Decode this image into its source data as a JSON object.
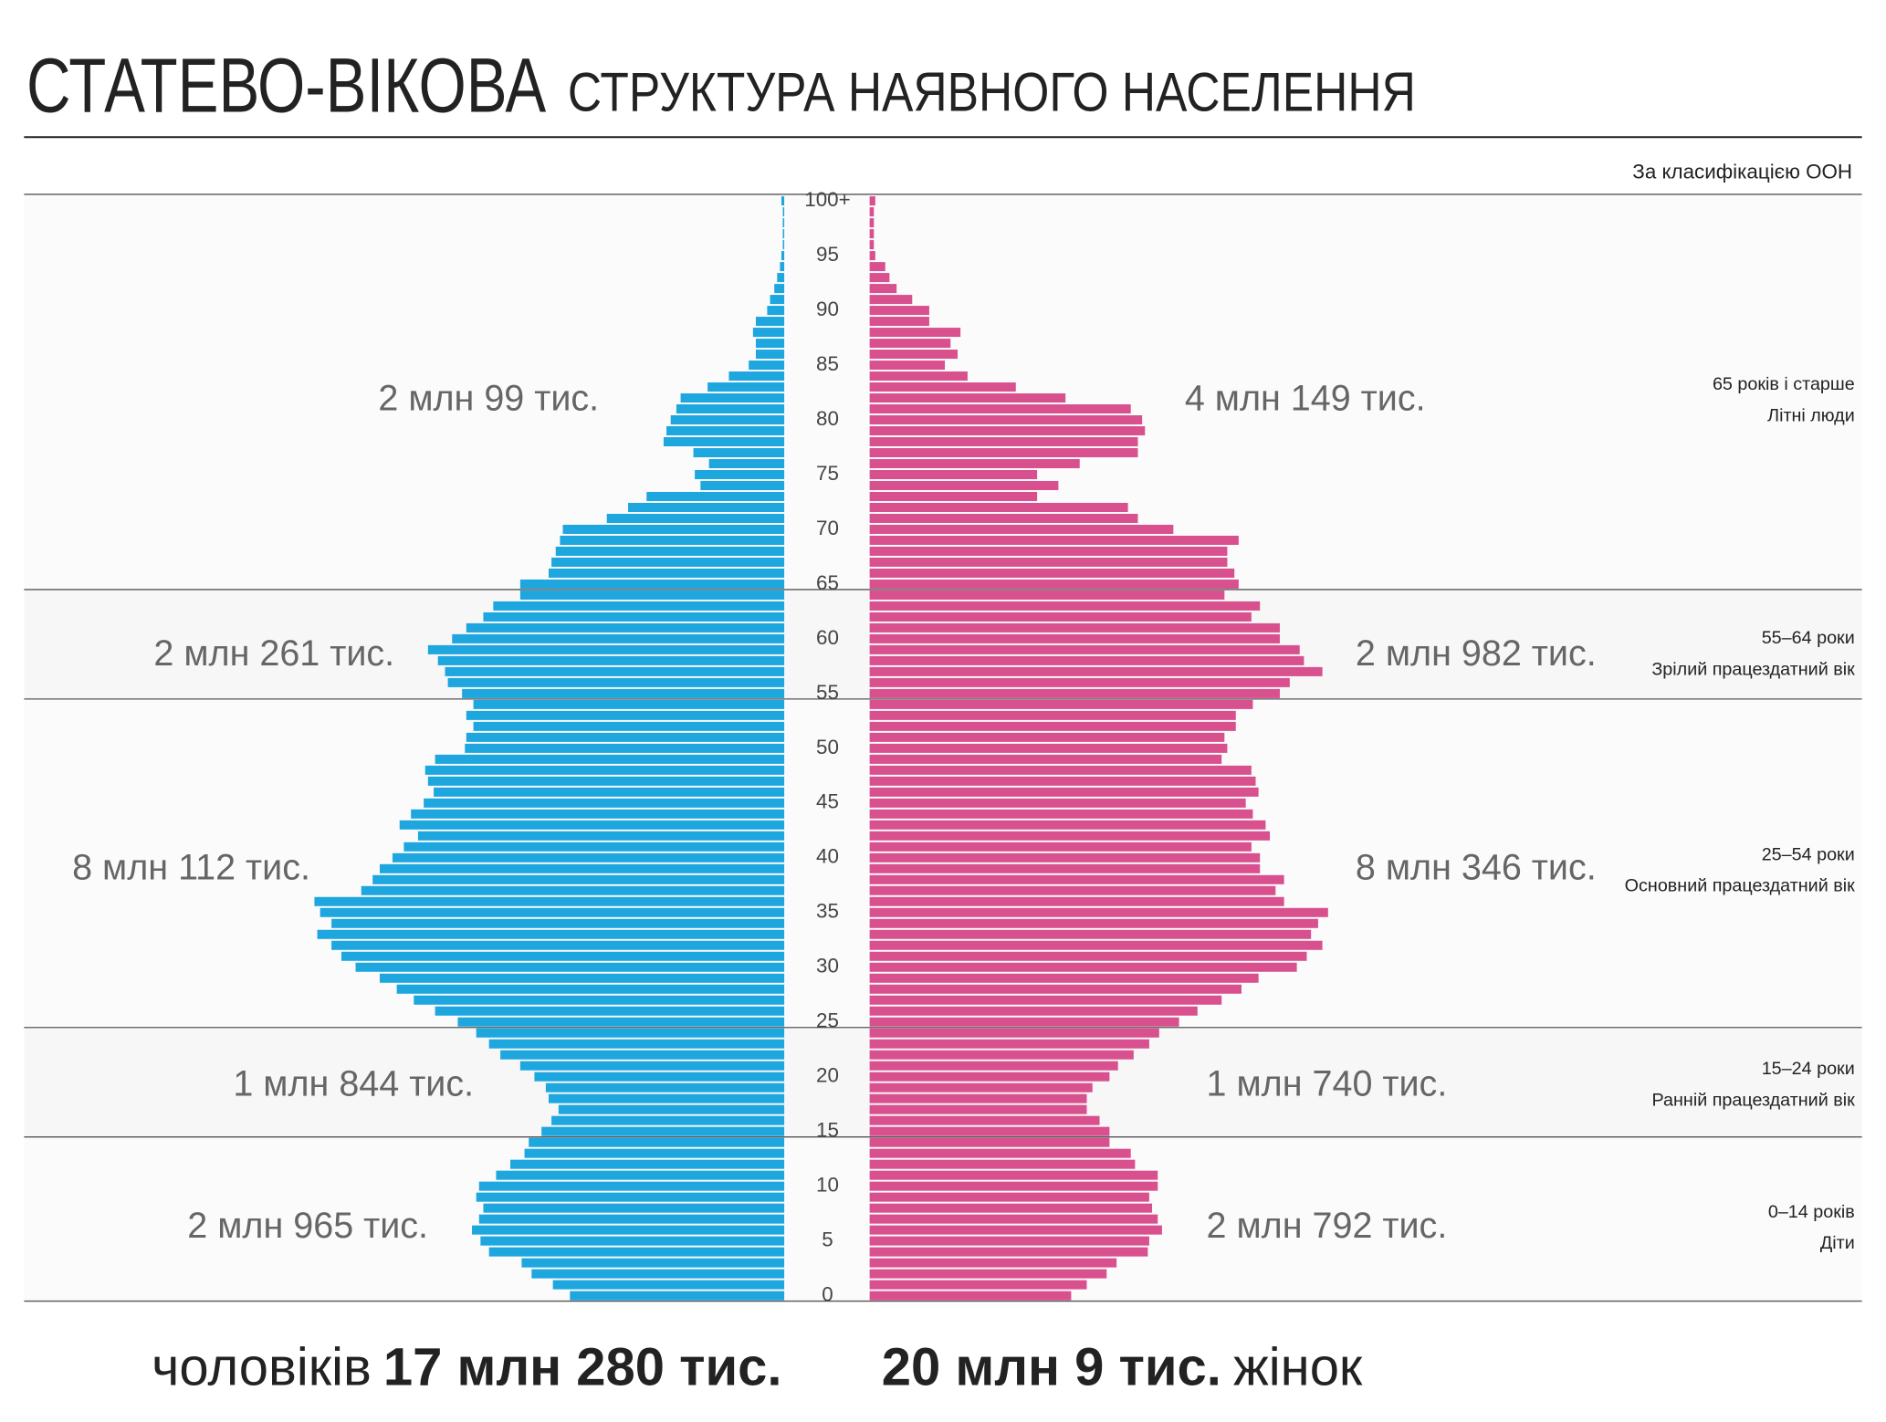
{
  "chart_data": {
    "type": "population_pyramid",
    "title": "СТАТЕВО-ВІКОВА",
    "subtitle": "СТРУКТУРА НАЯВНОГО НАСЕЛЕННЯ",
    "note": "За класифікацією ООН",
    "categories": [
      "0",
      null,
      null,
      null,
      null,
      "5",
      null,
      null,
      null,
      null,
      "10",
      null,
      null,
      null,
      null,
      "15",
      null,
      null,
      null,
      null,
      "20",
      null,
      null,
      null,
      null,
      "25",
      null,
      null,
      null,
      null,
      "30",
      null,
      null,
      null,
      null,
      "35",
      null,
      null,
      null,
      null,
      "40",
      null,
      null,
      null,
      null,
      "45",
      null,
      null,
      null,
      null,
      "50",
      null,
      null,
      null,
      null,
      "55",
      null,
      null,
      null,
      null,
      "60",
      null,
      null,
      null,
      null,
      "65",
      null,
      null,
      null,
      null,
      "70",
      null,
      null,
      null,
      null,
      "75",
      null,
      null,
      null,
      null,
      "80",
      null,
      null,
      null,
      null,
      "85",
      null,
      null,
      null,
      null,
      "90",
      null,
      null,
      null,
      null,
      "95",
      null,
      null,
      null,
      null,
      "100+"
    ],
    "series": [
      {
        "name": "чоловіків",
        "total": "17 млн 280 тис.",
        "color": "#1ea6df",
        "values": [
          151,
          163,
          178,
          185,
          208,
          214,
          220,
          215,
          212,
          217,
          215,
          203,
          193,
          183,
          180,
          171,
          164,
          159,
          166,
          168,
          176,
          186,
          200,
          208,
          217,
          230,
          246,
          261,
          273,
          285,
          302,
          312,
          319,
          329,
          319,
          327,
          331,
          298,
          290,
          285,
          276,
          268,
          258,
          271,
          263,
          254,
          247,
          251,
          253,
          246,
          225,
          224,
          219,
          224,
          219,
          227,
          237,
          239,
          244,
          251,
          234,
          224,
          212,
          205,
          186,
          186,
          166,
          164,
          161,
          158,
          156,
          125,
          110,
          97,
          59,
          63,
          53,
          64,
          85,
          83,
          80,
          76,
          73,
          54,
          39,
          25,
          20,
          20,
          22,
          20,
          12,
          10,
          7,
          5,
          3,
          2,
          1,
          1,
          1,
          1,
          2
        ]
      },
      {
        "name": "жінок",
        "total": "20 млн 9 тис.",
        "color": "#d9508f",
        "values": [
          142,
          153,
          167,
          174,
          196,
          197,
          206,
          203,
          199,
          197,
          203,
          203,
          187,
          184,
          169,
          169,
          162,
          153,
          153,
          157,
          169,
          175,
          186,
          197,
          204,
          218,
          231,
          248,
          262,
          274,
          301,
          308,
          319,
          311,
          316,
          323,
          292,
          286,
          292,
          275,
          275,
          269,
          282,
          279,
          270,
          265,
          274,
          272,
          269,
          248,
          252,
          250,
          258,
          258,
          270,
          289,
          296,
          319,
          306,
          303,
          289,
          289,
          269,
          275,
          250,
          260,
          257,
          252,
          252,
          260,
          214,
          189,
          182,
          118,
          133,
          118,
          148,
          189,
          189,
          194,
          192,
          184,
          138,
          103,
          69,
          53,
          62,
          57,
          64,
          42,
          42,
          30,
          19,
          14,
          11,
          4,
          3,
          3,
          3,
          3,
          4
        ]
      }
    ],
    "groups": [
      {
        "label": "65 років і старше",
        "sublabel": "Літні люди",
        "value_labels": [
          "2 млн 99 тис.",
          "4 млн 149 тис."
        ]
      },
      {
        "label": "55–64 роки",
        "sublabel": "Зрілий працездатний вік",
        "value_labels": [
          "2 млн 261 тис.",
          "2 млн 982 тис."
        ]
      },
      {
        "label": "25–54 роки",
        "sublabel": "Основний працездатний вік",
        "value_labels": [
          "8 млн 112 тис.",
          "8 млн 346 тис."
        ]
      },
      {
        "label": "15–24 роки",
        "sublabel": "Ранній працездатний вік",
        "value_labels": [
          "1 млн 844 тис.",
          "1 млн 740 тис."
        ]
      },
      {
        "label": "0–14 років",
        "sublabel": "Діти",
        "value_labels": [
          "2 млн 965 тис.",
          "2 млн 792 тис."
        ]
      }
    ]
  }
}
